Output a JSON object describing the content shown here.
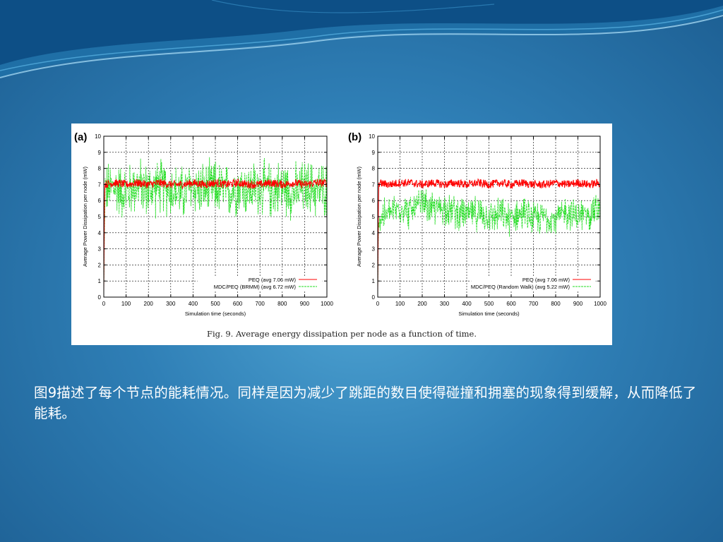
{
  "slide": {
    "body_text": "图9描述了每个节点的能耗情况。同样是因为减少了跳距的数目使得碰撞和拥塞的现象得到缓解，从而降低了能耗。"
  },
  "figure": {
    "caption": "Fig. 9.  Average energy dissipation per node as a function of time.",
    "colors": {
      "peq": "#ff0000",
      "mdc": "#22dd22",
      "grid": "#000000"
    }
  },
  "chart_data": [
    {
      "panel_label": "(a)",
      "type": "line",
      "xlabel": "Simulation time (seconds)",
      "ylabel": "Average Power Dissipation per node (mW)",
      "xlim": [
        0,
        1000
      ],
      "ylim": [
        0,
        10
      ],
      "xticks": [
        "0",
        "100",
        "200",
        "300",
        "400",
        "500",
        "600",
        "700",
        "800",
        "900",
        "1000"
      ],
      "yticks": [
        "0",
        "1",
        "2",
        "3",
        "4",
        "5",
        "6",
        "7",
        "8",
        "9",
        "10"
      ],
      "grid": true,
      "legend_position": "bottom-right",
      "series": [
        {
          "name": "PEQ (avg 7.06 mW)",
          "line_style": "solid",
          "color": "#ff0000",
          "x": [
            0,
            50,
            100,
            150,
            200,
            250,
            300,
            350,
            400,
            450,
            500,
            550,
            600,
            650,
            700,
            750,
            800,
            850,
            900,
            950,
            1000
          ],
          "y": [
            7.0,
            7.1,
            7.0,
            7.1,
            7.0,
            7.1,
            7.0,
            7.0,
            7.1,
            7.0,
            7.1,
            7.0,
            7.1,
            7.0,
            7.0,
            7.1,
            7.0,
            7.1,
            7.0,
            7.1,
            7.1
          ]
        },
        {
          "name": "MDC/PEQ (BRMM) (avg 6.72 mW)",
          "line_style": "dashed",
          "color": "#22dd22",
          "x": [
            0,
            50,
            100,
            150,
            200,
            250,
            300,
            350,
            400,
            450,
            500,
            550,
            600,
            650,
            700,
            750,
            800,
            850,
            900,
            950,
            1000
          ],
          "y": [
            6.6,
            6.8,
            6.5,
            7.0,
            6.6,
            6.9,
            6.7,
            6.4,
            6.9,
            6.6,
            6.8,
            6.5,
            6.9,
            6.7,
            6.8,
            6.6,
            6.9,
            6.5,
            6.8,
            6.7,
            6.7
          ]
        }
      ]
    },
    {
      "panel_label": "(b)",
      "type": "line",
      "xlabel": "Simulation time (seconds)",
      "ylabel": "Average Power Dissipation per node (mW)",
      "xlim": [
        0,
        1000
      ],
      "ylim": [
        0,
        10
      ],
      "xticks": [
        "0",
        "100",
        "200",
        "300",
        "400",
        "500",
        "600",
        "700",
        "800",
        "900",
        "1000"
      ],
      "yticks": [
        "0",
        "1",
        "2",
        "3",
        "4",
        "5",
        "6",
        "7",
        "8",
        "9",
        "10"
      ],
      "grid": true,
      "legend_position": "bottom-right",
      "series": [
        {
          "name": "PEQ (avg 7.06 mW)",
          "line_style": "solid",
          "color": "#ff0000",
          "x": [
            0,
            50,
            100,
            150,
            200,
            250,
            300,
            350,
            400,
            450,
            500,
            550,
            600,
            650,
            700,
            750,
            800,
            850,
            900,
            950,
            1000
          ],
          "y": [
            7.1,
            7.0,
            7.1,
            7.1,
            7.0,
            7.1,
            7.0,
            7.1,
            7.0,
            7.1,
            7.0,
            7.1,
            7.0,
            7.1,
            7.0,
            7.0,
            7.1,
            7.0,
            7.1,
            7.0,
            7.1
          ]
        },
        {
          "name": "MDC/PEQ (Random Walk) (avg 5.22 mW)",
          "line_style": "dashed",
          "color": "#22dd22",
          "x": [
            0,
            50,
            100,
            150,
            200,
            250,
            300,
            350,
            400,
            450,
            500,
            550,
            600,
            650,
            700,
            750,
            800,
            850,
            900,
            950,
            1000
          ],
          "y": [
            4.8,
            5.2,
            5.6,
            5.3,
            5.8,
            5.4,
            5.6,
            5.3,
            5.1,
            5.2,
            5.0,
            5.1,
            4.9,
            5.2,
            4.8,
            5.0,
            4.9,
            5.3,
            5.0,
            5.2,
            5.5
          ]
        }
      ]
    }
  ]
}
